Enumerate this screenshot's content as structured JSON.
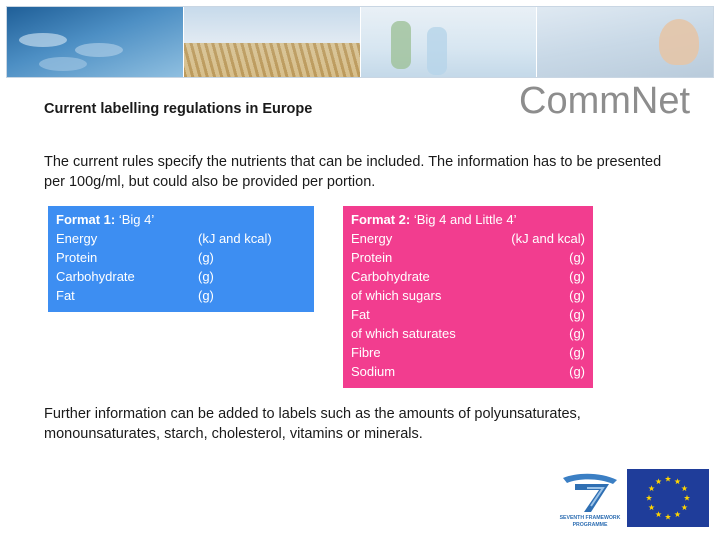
{
  "title": "Current labelling regulations in Europe",
  "logo": {
    "text_part1": "Comm",
    "text_part2": "Net"
  },
  "intro": "The current rules specify the nutrients that can be included. The information has to be presented per 100g/ml, but could also be provided per portion.",
  "format1": {
    "heading_bold": "Format 1:",
    "heading_rest": " ‘Big 4’",
    "rows": [
      {
        "label": "Energy",
        "unit": "(kJ and kcal)"
      },
      {
        "label": "Protein",
        "unit": "(g)"
      },
      {
        "label": "Carbohydrate",
        "unit": "(g)"
      },
      {
        "label": "Fat",
        "unit": "(g)"
      }
    ]
  },
  "format2": {
    "heading_bold": "Format 2:",
    "heading_rest": " ‘Big 4 and Little 4’",
    "rows": [
      {
        "label": "Energy",
        "unit": "(kJ and kcal)"
      },
      {
        "label": "Protein",
        "unit": "(g)"
      },
      {
        "label": "Carbohydrate",
        "unit": "(g)"
      },
      {
        "label": "of which sugars",
        "unit": "(g)"
      },
      {
        "label": "Fat",
        "unit": "(g)"
      },
      {
        "label": "of which saturates",
        "unit": "(g)"
      },
      {
        "label": "Fibre",
        "unit": "(g)"
      },
      {
        "label": "Sodium",
        "unit": "(g)"
      }
    ]
  },
  "further": "Further information can be added to labels such as the amounts of polyunsaturates, monounsaturates, starch, cholesterol, vitamins or minerals.",
  "fp7_logo": {
    "line1": "SEVENTH FRAMEWORK",
    "line2": "PROGRAMME"
  },
  "colors": {
    "format1_bg": "#3d8ef2",
    "format2_bg": "#f23d8f",
    "eu_blue": "#1f3d9a",
    "eu_star": "#ffd500"
  }
}
